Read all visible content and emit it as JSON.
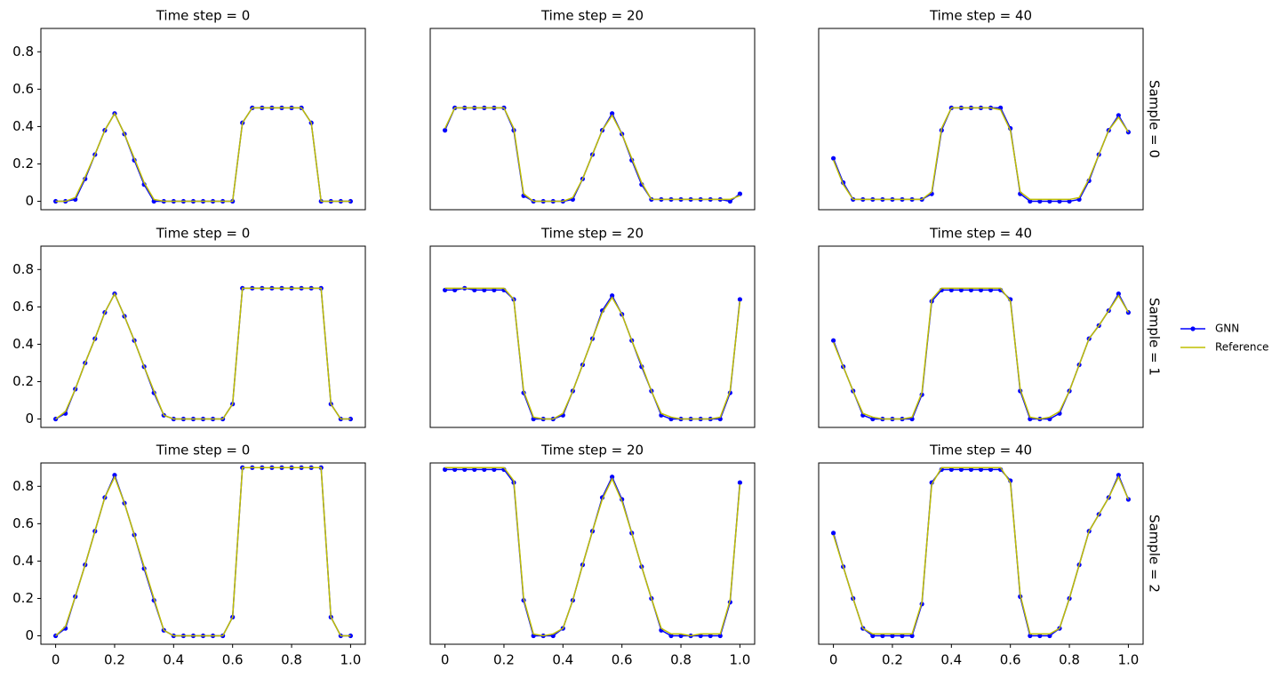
{
  "chart_data": [
    {
      "type": "line",
      "title": "Time step = 0",
      "x": [
        0,
        0.0333,
        0.0667,
        0.1,
        0.1333,
        0.1667,
        0.2,
        0.2333,
        0.2667,
        0.3,
        0.3333,
        0.3667,
        0.4,
        0.4333,
        0.4667,
        0.5,
        0.5333,
        0.5667,
        0.6,
        0.6333,
        0.6667,
        0.7,
        0.7333,
        0.7667,
        0.8,
        0.8333,
        0.8667,
        0.9,
        0.9333,
        0.9667,
        1
      ],
      "xlim": [
        -0.05,
        1.05
      ],
      "ylim": [
        -0.045,
        0.925
      ],
      "yticks": [
        0,
        0.2,
        0.4,
        0.6,
        0.8
      ],
      "legend": "right",
      "series": [
        {
          "name": "GNN",
          "color": "#0000ff",
          "marker": true,
          "values": [
            0,
            0,
            0.01,
            0.12,
            0.25,
            0.38,
            0.47,
            0.36,
            0.22,
            0.09,
            0,
            0,
            0,
            0,
            0,
            0,
            0,
            0,
            0,
            0.42,
            0.5,
            0.5,
            0.5,
            0.5,
            0.5,
            0.5,
            0.42,
            0,
            0,
            0,
            0
          ]
        },
        {
          "name": "Reference",
          "color": "#bfbf00",
          "values": [
            0,
            0,
            0.02,
            0.13,
            0.25,
            0.38,
            0.47,
            0.36,
            0.23,
            0.1,
            0.01,
            0,
            0,
            0,
            0,
            0,
            0,
            0,
            0,
            0.42,
            0.5,
            0.5,
            0.5,
            0.5,
            0.5,
            0.5,
            0.42,
            0,
            0,
            0,
            0
          ]
        }
      ]
    },
    {
      "type": "line",
      "title": "Time step = 20",
      "x": [
        0,
        0.0333,
        0.0667,
        0.1,
        0.1333,
        0.1667,
        0.2,
        0.2333,
        0.2667,
        0.3,
        0.3333,
        0.3667,
        0.4,
        0.4333,
        0.4667,
        0.5,
        0.5333,
        0.5667,
        0.6,
        0.6333,
        0.6667,
        0.7,
        0.7333,
        0.7667,
        0.8,
        0.8333,
        0.8667,
        0.9,
        0.9333,
        0.9667,
        1
      ],
      "xlim": [
        -0.05,
        1.05
      ],
      "ylim": [
        -0.045,
        0.925
      ],
      "series": [
        {
          "name": "GNN",
          "color": "#0000ff",
          "marker": true,
          "values": [
            0.38,
            0.5,
            0.5,
            0.5,
            0.5,
            0.5,
            0.5,
            0.38,
            0.03,
            0,
            0,
            0,
            0,
            0.01,
            0.12,
            0.25,
            0.38,
            0.47,
            0.36,
            0.22,
            0.09,
            0.01,
            0.01,
            0.01,
            0.01,
            0.01,
            0.01,
            0.01,
            0.01,
            0,
            0.04
          ]
        },
        {
          "name": "Reference",
          "color": "#bfbf00",
          "values": [
            0.39,
            0.5,
            0.5,
            0.5,
            0.5,
            0.5,
            0.5,
            0.39,
            0.04,
            0,
            0,
            0,
            0,
            0.02,
            0.12,
            0.25,
            0.38,
            0.46,
            0.36,
            0.23,
            0.1,
            0.01,
            0.01,
            0.01,
            0.01,
            0.01,
            0.01,
            0.01,
            0.01,
            0.01,
            0.03
          ]
        }
      ]
    },
    {
      "type": "line",
      "title": "Time step = 40",
      "row_label": "Sample = 0",
      "x": [
        0,
        0.0333,
        0.0667,
        0.1,
        0.1333,
        0.1667,
        0.2,
        0.2333,
        0.2667,
        0.3,
        0.3333,
        0.3667,
        0.4,
        0.4333,
        0.4667,
        0.5,
        0.5333,
        0.5667,
        0.6,
        0.6333,
        0.6667,
        0.7,
        0.7333,
        0.7667,
        0.8,
        0.8333,
        0.8667,
        0.9,
        0.9333,
        0.9667,
        1
      ],
      "xlim": [
        -0.05,
        1.05
      ],
      "ylim": [
        -0.045,
        0.925
      ],
      "series": [
        {
          "name": "GNN",
          "color": "#0000ff",
          "marker": true,
          "values": [
            0.23,
            0.1,
            0.01,
            0.01,
            0.01,
            0.01,
            0.01,
            0.01,
            0.01,
            0.01,
            0.04,
            0.38,
            0.5,
            0.5,
            0.5,
            0.5,
            0.5,
            0.5,
            0.39,
            0.04,
            0,
            0,
            0,
            0,
            0,
            0.01,
            0.11,
            0.25,
            0.38,
            0.46,
            0.37
          ]
        },
        {
          "name": "Reference",
          "color": "#bfbf00",
          "values": [
            0.22,
            0.09,
            0.01,
            0.01,
            0.01,
            0.01,
            0.01,
            0.01,
            0.01,
            0.01,
            0.05,
            0.39,
            0.5,
            0.5,
            0.5,
            0.5,
            0.5,
            0.49,
            0.38,
            0.05,
            0.01,
            0.01,
            0.01,
            0.01,
            0.01,
            0.02,
            0.12,
            0.25,
            0.38,
            0.45,
            0.37
          ]
        }
      ]
    },
    {
      "type": "line",
      "title": "Time step = 0",
      "x": [
        0,
        0.0333,
        0.0667,
        0.1,
        0.1333,
        0.1667,
        0.2,
        0.2333,
        0.2667,
        0.3,
        0.3333,
        0.3667,
        0.4,
        0.4333,
        0.4667,
        0.5,
        0.5333,
        0.5667,
        0.6,
        0.6333,
        0.6667,
        0.7,
        0.7333,
        0.7667,
        0.8,
        0.8333,
        0.8667,
        0.9,
        0.9333,
        0.9667,
        1
      ],
      "xlim": [
        -0.05,
        1.05
      ],
      "ylim": [
        -0.045,
        0.925
      ],
      "yticks": [
        0,
        0.2,
        0.4,
        0.6,
        0.8
      ],
      "series": [
        {
          "name": "GNN",
          "color": "#0000ff",
          "marker": true,
          "values": [
            0,
            0.03,
            0.16,
            0.3,
            0.43,
            0.57,
            0.67,
            0.55,
            0.42,
            0.28,
            0.14,
            0.02,
            0,
            0,
            0,
            0,
            0,
            0,
            0.08,
            0.7,
            0.7,
            0.7,
            0.7,
            0.7,
            0.7,
            0.7,
            0.7,
            0.7,
            0.08,
            0,
            0
          ]
        },
        {
          "name": "Reference",
          "color": "#bfbf00",
          "values": [
            0,
            0.04,
            0.16,
            0.3,
            0.43,
            0.57,
            0.67,
            0.55,
            0.42,
            0.28,
            0.15,
            0.02,
            0,
            0,
            0,
            0,
            0,
            0,
            0.08,
            0.7,
            0.7,
            0.7,
            0.7,
            0.7,
            0.7,
            0.7,
            0.7,
            0.7,
            0.08,
            0,
            0
          ]
        }
      ]
    },
    {
      "type": "line",
      "title": "Time step = 20",
      "x": [
        0,
        0.0333,
        0.0667,
        0.1,
        0.1333,
        0.1667,
        0.2,
        0.2333,
        0.2667,
        0.3,
        0.3333,
        0.3667,
        0.4,
        0.4333,
        0.4667,
        0.5,
        0.5333,
        0.5667,
        0.6,
        0.6333,
        0.6667,
        0.7,
        0.7333,
        0.7667,
        0.8,
        0.8333,
        0.8667,
        0.9,
        0.9333,
        0.9667,
        1
      ],
      "xlim": [
        -0.05,
        1.05
      ],
      "ylim": [
        -0.045,
        0.925
      ],
      "series": [
        {
          "name": "GNN",
          "color": "#0000ff",
          "marker": true,
          "values": [
            0.69,
            0.69,
            0.7,
            0.69,
            0.69,
            0.69,
            0.69,
            0.64,
            0.14,
            0,
            0,
            0,
            0.02,
            0.15,
            0.29,
            0.43,
            0.58,
            0.66,
            0.56,
            0.42,
            0.28,
            0.15,
            0.02,
            0,
            0,
            0,
            0,
            0,
            0,
            0.14,
            0.64
          ]
        },
        {
          "name": "Reference",
          "color": "#bfbf00",
          "values": [
            0.7,
            0.7,
            0.7,
            0.7,
            0.7,
            0.7,
            0.7,
            0.64,
            0.15,
            0.01,
            0,
            0,
            0.03,
            0.15,
            0.29,
            0.43,
            0.57,
            0.65,
            0.56,
            0.42,
            0.29,
            0.15,
            0.03,
            0.01,
            0,
            0,
            0,
            0,
            0.01,
            0.15,
            0.63
          ]
        }
      ]
    },
    {
      "type": "line",
      "title": "Time step = 40",
      "row_label": "Sample = 1",
      "x": [
        0,
        0.0333,
        0.0667,
        0.1,
        0.1333,
        0.1667,
        0.2,
        0.2333,
        0.2667,
        0.3,
        0.3333,
        0.3667,
        0.4,
        0.4333,
        0.4667,
        0.5,
        0.5333,
        0.5667,
        0.6,
        0.6333,
        0.6667,
        0.7,
        0.7333,
        0.7667,
        0.8,
        0.8333,
        0.8667,
        0.9,
        0.9333,
        0.9667,
        1
      ],
      "xlim": [
        -0.05,
        1.05
      ],
      "ylim": [
        -0.045,
        0.925
      ],
      "series": [
        {
          "name": "GNN",
          "color": "#0000ff",
          "marker": true,
          "values": [
            0.42,
            0.28,
            0.15,
            0.02,
            0,
            0,
            0,
            0,
            0,
            0.13,
            0.63,
            0.69,
            0.69,
            0.69,
            0.69,
            0.69,
            0.69,
            0.69,
            0.64,
            0.15,
            0,
            0,
            0,
            0.03,
            0.15,
            0.29,
            0.43,
            0.5,
            0.58,
            0.67,
            0.57
          ]
        },
        {
          "name": "Reference",
          "color": "#bfbf00",
          "values": [
            0.41,
            0.28,
            0.15,
            0.03,
            0.01,
            0,
            0,
            0,
            0.01,
            0.14,
            0.64,
            0.7,
            0.7,
            0.7,
            0.7,
            0.7,
            0.7,
            0.7,
            0.63,
            0.16,
            0.01,
            0,
            0.01,
            0.04,
            0.15,
            0.29,
            0.43,
            0.5,
            0.58,
            0.66,
            0.57
          ]
        }
      ]
    },
    {
      "type": "line",
      "title": "Time step = 0",
      "x": [
        0,
        0.0333,
        0.0667,
        0.1,
        0.1333,
        0.1667,
        0.2,
        0.2333,
        0.2667,
        0.3,
        0.3333,
        0.3667,
        0.4,
        0.4333,
        0.4667,
        0.5,
        0.5333,
        0.5667,
        0.6,
        0.6333,
        0.6667,
        0.7,
        0.7333,
        0.7667,
        0.8,
        0.8333,
        0.8667,
        0.9,
        0.9333,
        0.9667,
        1
      ],
      "xlim": [
        -0.05,
        1.05
      ],
      "ylim": [
        -0.045,
        0.925
      ],
      "yticks": [
        0,
        0.2,
        0.4,
        0.6,
        0.8
      ],
      "xticks": [
        0,
        0.2,
        0.4,
        0.6,
        0.8,
        {
          "value": 1,
          "label": "1.0"
        }
      ],
      "series": [
        {
          "name": "GNN",
          "color": "#0000ff",
          "marker": true,
          "values": [
            0,
            0.04,
            0.21,
            0.38,
            0.56,
            0.74,
            0.86,
            0.71,
            0.54,
            0.36,
            0.19,
            0.03,
            0,
            0,
            0,
            0,
            0,
            0,
            0.1,
            0.9,
            0.9,
            0.9,
            0.9,
            0.9,
            0.9,
            0.9,
            0.9,
            0.9,
            0.1,
            0,
            0
          ]
        },
        {
          "name": "Reference",
          "color": "#bfbf00",
          "values": [
            0,
            0.05,
            0.21,
            0.38,
            0.56,
            0.74,
            0.85,
            0.71,
            0.54,
            0.37,
            0.2,
            0.03,
            0,
            0,
            0,
            0,
            0,
            0,
            0.1,
            0.9,
            0.9,
            0.9,
            0.9,
            0.9,
            0.9,
            0.9,
            0.9,
            0.9,
            0.1,
            0,
            0
          ]
        }
      ]
    },
    {
      "type": "line",
      "title": "Time step = 20",
      "x": [
        0,
        0.0333,
        0.0667,
        0.1,
        0.1333,
        0.1667,
        0.2,
        0.2333,
        0.2667,
        0.3,
        0.3333,
        0.3667,
        0.4,
        0.4333,
        0.4667,
        0.5,
        0.5333,
        0.5667,
        0.6,
        0.6333,
        0.6667,
        0.7,
        0.7333,
        0.7667,
        0.8,
        0.8333,
        0.8667,
        0.9,
        0.9333,
        0.9667,
        1
      ],
      "xlim": [
        -0.05,
        1.05
      ],
      "ylim": [
        -0.045,
        0.925
      ],
      "xticks": [
        0,
        0.2,
        0.4,
        0.6,
        0.8,
        {
          "value": 1,
          "label": "1.0"
        }
      ],
      "series": [
        {
          "name": "GNN",
          "color": "#0000ff",
          "marker": true,
          "values": [
            0.89,
            0.89,
            0.89,
            0.89,
            0.89,
            0.89,
            0.89,
            0.82,
            0.19,
            0,
            0,
            0,
            0.04,
            0.19,
            0.38,
            0.56,
            0.74,
            0.85,
            0.73,
            0.55,
            0.37,
            0.2,
            0.03,
            0,
            0,
            0,
            0,
            0,
            0,
            0.18,
            0.82
          ]
        },
        {
          "name": "Reference",
          "color": "#bfbf00",
          "values": [
            0.9,
            0.9,
            0.9,
            0.9,
            0.9,
            0.9,
            0.9,
            0.83,
            0.2,
            0.01,
            0,
            0.01,
            0.04,
            0.19,
            0.38,
            0.56,
            0.73,
            0.84,
            0.72,
            0.55,
            0.37,
            0.2,
            0.04,
            0.01,
            0.01,
            0,
            0.01,
            0.01,
            0.01,
            0.19,
            0.81
          ]
        }
      ]
    },
    {
      "type": "line",
      "title": "Time step = 40",
      "row_label": "Sample = 2",
      "x": [
        0,
        0.0333,
        0.0667,
        0.1,
        0.1333,
        0.1667,
        0.2,
        0.2333,
        0.2667,
        0.3,
        0.3333,
        0.3667,
        0.4,
        0.4333,
        0.4667,
        0.5,
        0.5333,
        0.5667,
        0.6,
        0.6333,
        0.6667,
        0.7,
        0.7333,
        0.7667,
        0.8,
        0.8333,
        0.8667,
        0.9,
        0.9333,
        0.9667,
        1
      ],
      "xlim": [
        -0.05,
        1.05
      ],
      "ylim": [
        -0.045,
        0.925
      ],
      "xticks": [
        0,
        0.2,
        0.4,
        0.6,
        0.8,
        {
          "value": 1,
          "label": "1.0"
        }
      ],
      "series": [
        {
          "name": "GNN",
          "color": "#0000ff",
          "marker": true,
          "values": [
            0.55,
            0.37,
            0.2,
            0.04,
            0,
            0,
            0,
            0,
            0,
            0.17,
            0.82,
            0.89,
            0.89,
            0.89,
            0.89,
            0.89,
            0.89,
            0.89,
            0.83,
            0.21,
            0,
            0,
            0,
            0.04,
            0.2,
            0.38,
            0.56,
            0.65,
            0.74,
            0.86,
            0.73
          ]
        },
        {
          "name": "Reference",
          "color": "#bfbf00",
          "values": [
            0.54,
            0.37,
            0.2,
            0.04,
            0.01,
            0.01,
            0.01,
            0.01,
            0.01,
            0.18,
            0.81,
            0.9,
            0.9,
            0.9,
            0.9,
            0.9,
            0.9,
            0.9,
            0.82,
            0.22,
            0.01,
            0.01,
            0.01,
            0.04,
            0.2,
            0.38,
            0.56,
            0.65,
            0.74,
            0.85,
            0.73
          ]
        }
      ]
    }
  ]
}
